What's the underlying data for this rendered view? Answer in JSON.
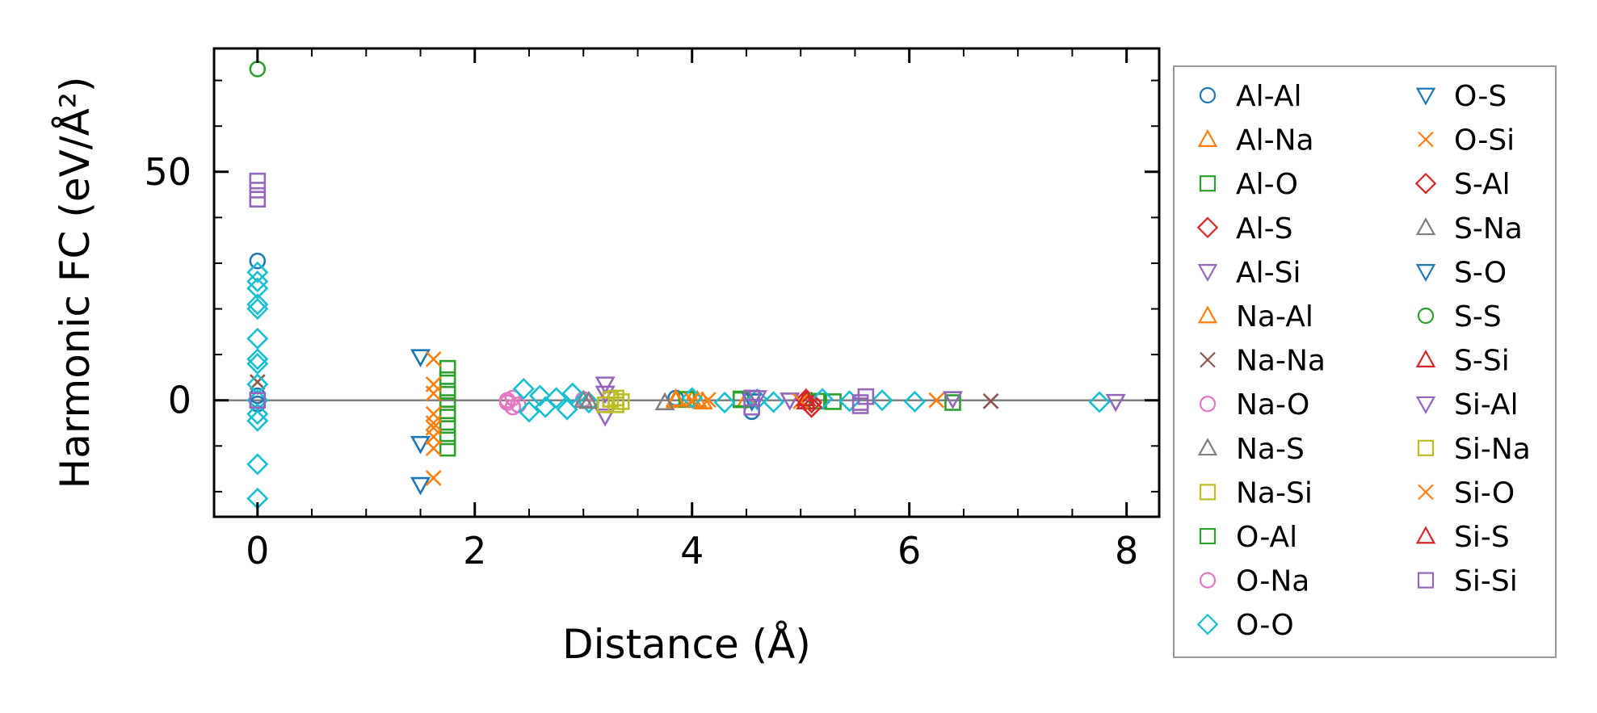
{
  "chart_data": {
    "type": "scatter",
    "xlabel": "Distance (Å)",
    "ylabel": "Harmonic FC (eV/Å²)",
    "xlim": [
      -0.4,
      8.3
    ],
    "ylim": [
      -25.5,
      77
    ],
    "xticks": [
      0,
      2,
      4,
      6,
      8
    ],
    "yticks": [
      0,
      50
    ],
    "zero_line": true,
    "grid": false,
    "legend_placement": "outside-right",
    "series": [
      {
        "name": "Al-Al",
        "marker": "circle",
        "color": "#1f77b4",
        "points": [
          [
            0,
            30.5
          ],
          [
            0,
            1.0
          ],
          [
            0,
            -0.8
          ],
          [
            4.55,
            -2.5
          ],
          [
            3.85,
            0.5
          ]
        ]
      },
      {
        "name": "Al-Na",
        "marker": "triangle-up",
        "color": "#ff7f0e",
        "points": [
          [
            3.85,
            0.0
          ],
          [
            4.0,
            0.2
          ],
          [
            4.1,
            -0.3
          ],
          [
            4.5,
            0.1
          ]
        ]
      },
      {
        "name": "Al-O",
        "marker": "square",
        "color": "#2ca02c",
        "points": [
          [
            1.75,
            7.0
          ],
          [
            1.75,
            4.5
          ],
          [
            1.75,
            2.0
          ],
          [
            1.75,
            -0.5
          ],
          [
            1.75,
            -3.0
          ],
          [
            1.75,
            -5.5
          ],
          [
            1.75,
            -8.0
          ],
          [
            1.75,
            -10.5
          ],
          [
            3.95,
            0.2
          ],
          [
            4.45,
            0.1
          ],
          [
            5.3,
            -0.3
          ],
          [
            6.4,
            -0.5
          ]
        ]
      },
      {
        "name": "Al-S",
        "marker": "diamond",
        "color": "#d62728",
        "points": [
          [
            5.05,
            0.2
          ],
          [
            5.1,
            -0.5
          ]
        ]
      },
      {
        "name": "Al-Si",
        "marker": "triangle-down",
        "color": "#9467bd",
        "points": [
          [
            3.2,
            3.5
          ],
          [
            3.2,
            -3.5
          ],
          [
            4.9,
            0.0
          ],
          [
            6.4,
            0.3
          ]
        ]
      },
      {
        "name": "Na-Al",
        "marker": "triangle-up",
        "color": "#ff7f0e",
        "points": [
          [
            3.85,
            0.3
          ],
          [
            4.05,
            0.0
          ]
        ]
      },
      {
        "name": "Na-Na",
        "marker": "x",
        "color": "#8c564b",
        "points": [
          [
            0,
            4.0
          ],
          [
            6.75,
            -0.2
          ]
        ]
      },
      {
        "name": "Na-O",
        "marker": "circle",
        "color": "#e377c2",
        "points": [
          [
            2.3,
            -0.5
          ],
          [
            2.35,
            0.5
          ],
          [
            2.4,
            -1.0
          ],
          [
            3.0,
            0.2
          ]
        ]
      },
      {
        "name": "Na-S",
        "marker": "triangle-up",
        "color": "#7f7f7f",
        "points": [
          [
            3.0,
            0.0
          ],
          [
            3.75,
            -0.5
          ]
        ]
      },
      {
        "name": "Na-Si",
        "marker": "square",
        "color": "#bcbd22",
        "points": [
          [
            3.25,
            0.2
          ],
          [
            3.35,
            -0.3
          ],
          [
            3.3,
            -1.0
          ]
        ]
      },
      {
        "name": "O-Al",
        "marker": "square",
        "color": "#2ca02c",
        "points": [
          [
            4.45,
            0.3
          ],
          [
            5.15,
            -0.2
          ]
        ]
      },
      {
        "name": "O-Na",
        "marker": "circle",
        "color": "#e377c2",
        "points": [
          [
            2.3,
            0.0
          ],
          [
            2.35,
            -1.5
          ]
        ]
      },
      {
        "name": "O-O",
        "marker": "diamond",
        "color": "#17becf",
        "points": [
          [
            0,
            28.0
          ],
          [
            0,
            26.0
          ],
          [
            0,
            24.5
          ],
          [
            0,
            21.0
          ],
          [
            0,
            20.0
          ],
          [
            0,
            13.5
          ],
          [
            0,
            9.0
          ],
          [
            0,
            8.0
          ],
          [
            0,
            3.5
          ],
          [
            0,
            0.0
          ],
          [
            0,
            -3.0
          ],
          [
            0,
            -4.5
          ],
          [
            0,
            -14.0
          ],
          [
            0,
            -21.5
          ],
          [
            2.45,
            2.5
          ],
          [
            2.5,
            -2.5
          ],
          [
            2.6,
            1.0
          ],
          [
            2.65,
            -1.5
          ],
          [
            2.75,
            0.5
          ],
          [
            2.85,
            -2.0
          ],
          [
            2.9,
            1.5
          ],
          [
            3.05,
            -0.5
          ],
          [
            4.0,
            0.5
          ],
          [
            4.3,
            -0.5
          ],
          [
            4.6,
            0.2
          ],
          [
            4.75,
            -0.4
          ],
          [
            5.2,
            0.3
          ],
          [
            5.45,
            -0.2
          ],
          [
            5.75,
            0.0
          ],
          [
            6.05,
            -0.3
          ],
          [
            7.75,
            -0.4
          ]
        ]
      },
      {
        "name": "O-S",
        "marker": "triangle-down",
        "color": "#1f77b4",
        "points": [
          [
            1.5,
            9.5
          ],
          [
            1.5,
            -9.5
          ],
          [
            1.5,
            -18.5
          ]
        ]
      },
      {
        "name": "O-Si",
        "marker": "x",
        "color": "#ff7f0e",
        "points": [
          [
            1.62,
            9.0
          ],
          [
            1.62,
            3.5
          ],
          [
            1.62,
            -3.0
          ],
          [
            1.62,
            -5.0
          ],
          [
            1.62,
            -8.0
          ],
          [
            1.62,
            -10.5
          ],
          [
            1.62,
            -17.0
          ]
        ]
      },
      {
        "name": "S-Al",
        "marker": "diamond",
        "color": "#d62728",
        "points": [
          [
            5.1,
            -1.5
          ]
        ]
      },
      {
        "name": "S-Na",
        "marker": "triangle-up",
        "color": "#7f7f7f",
        "points": [
          [
            3.05,
            -0.2
          ]
        ]
      },
      {
        "name": "S-O",
        "marker": "triangle-down",
        "color": "#1f77b4",
        "points": [
          [
            4.55,
            -0.2
          ]
        ]
      },
      {
        "name": "S-S",
        "marker": "circle",
        "color": "#2ca02c",
        "points": [
          [
            0,
            72.5
          ]
        ]
      },
      {
        "name": "S-Si",
        "marker": "triangle-up",
        "color": "#d62728",
        "points": [
          [
            5.05,
            -0.3
          ]
        ]
      },
      {
        "name": "Si-Al",
        "marker": "triangle-down",
        "color": "#9467bd",
        "points": [
          [
            3.2,
            1.5
          ],
          [
            4.6,
            0.5
          ],
          [
            7.9,
            -0.3
          ]
        ]
      },
      {
        "name": "Si-Na",
        "marker": "square",
        "color": "#bcbd22",
        "points": [
          [
            3.2,
            -1.0
          ],
          [
            3.3,
            0.5
          ]
        ]
      },
      {
        "name": "Si-O",
        "marker": "x",
        "color": "#ff7f0e",
        "points": [
          [
            1.62,
            1.5
          ],
          [
            1.62,
            -6.0
          ],
          [
            4.0,
            0.0
          ],
          [
            4.15,
            0.1
          ],
          [
            5.0,
            -0.2
          ],
          [
            6.25,
            0.0
          ]
        ]
      },
      {
        "name": "Si-S",
        "marker": "triangle-up",
        "color": "#d62728",
        "points": [
          [
            5.05,
            0.4
          ]
        ]
      },
      {
        "name": "Si-Si",
        "marker": "square",
        "color": "#9467bd",
        "points": [
          [
            0,
            48.0
          ],
          [
            0,
            46.0
          ],
          [
            0,
            44.0
          ],
          [
            0,
            0.0
          ],
          [
            4.55,
            -1.5
          ],
          [
            4.55,
            0.5
          ],
          [
            5.55,
            -0.5
          ],
          [
            5.6,
            0.8
          ],
          [
            5.55,
            -1.2
          ]
        ]
      }
    ]
  }
}
